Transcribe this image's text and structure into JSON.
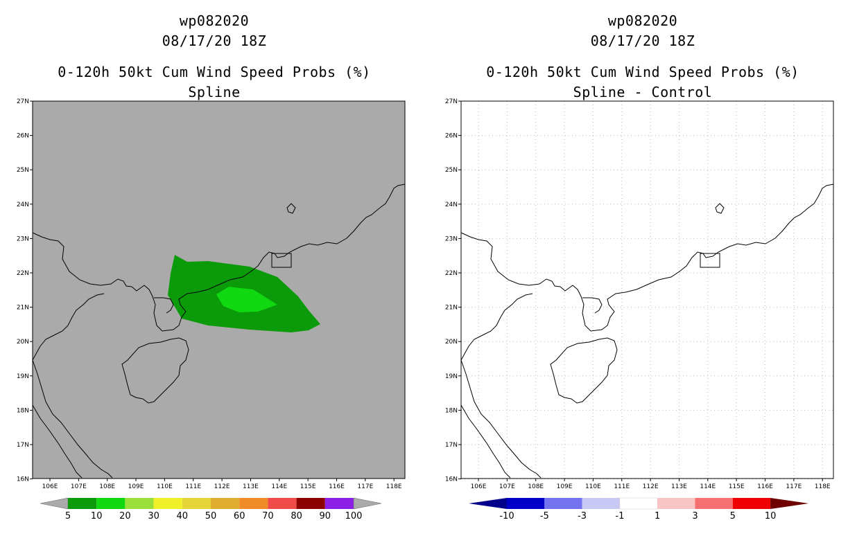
{
  "panels": [
    {
      "title": "wp082020",
      "datetime": "08/17/20 18Z",
      "product": "0-120h 50kt Cum Wind Speed Probs (%)",
      "subtitle": "Spline",
      "background": "#aaaaaa",
      "colorbar": {
        "labels": [
          "5",
          "10",
          "20",
          "30",
          "40",
          "50",
          "60",
          "70",
          "80",
          "90",
          "100"
        ],
        "colors": [
          "#0a9a0a",
          "#11d911",
          "#9be03a",
          "#f0f028",
          "#e4d437",
          "#e1ad2f",
          "#f08c28",
          "#ef4b48",
          "#8c0000",
          "#8c1ee6"
        ],
        "end_color": "#aaaaaa"
      }
    },
    {
      "title": "wp082020",
      "datetime": "08/17/20 18Z",
      "product": "0-120h 50kt Cum Wind Speed Probs (%)",
      "subtitle": "Spline - Control",
      "background": "#ffffff",
      "colorbar": {
        "labels": [
          "-10",
          "-5",
          "-3",
          "-1",
          "1",
          "3",
          "5",
          "10"
        ],
        "colors": [
          "#0000c8",
          "#7373f0",
          "#c8c8f5",
          "#ffffff",
          "#f8c4c4",
          "#f57070",
          "#f00000"
        ],
        "end_left": "#00008b",
        "end_right": "#6e0000"
      }
    }
  ],
  "map": {
    "lon_labels": [
      "106E",
      "107E",
      "108E",
      "109E",
      "110E",
      "111E",
      "112E",
      "113E",
      "114E",
      "115E",
      "116E",
      "117E",
      "118E"
    ],
    "lat_labels": [
      "27N",
      "26N",
      "25N",
      "24N",
      "23N",
      "22N",
      "21N",
      "20N",
      "19N",
      "18N",
      "17N",
      "16N"
    ]
  },
  "probability_field": {
    "contours": [
      {
        "level": "5",
        "color": "#0a9a0a"
      },
      {
        "level": "10",
        "color": "#11d911"
      }
    ]
  }
}
